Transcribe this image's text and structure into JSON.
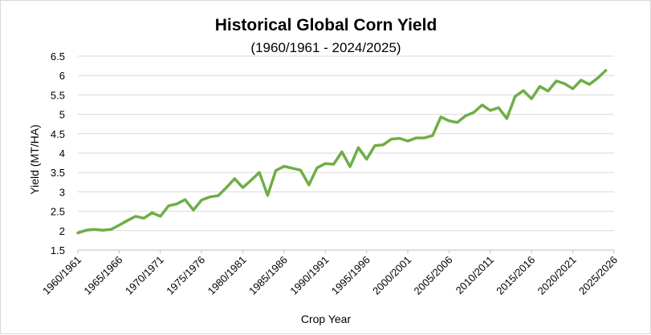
{
  "chart_data": {
    "type": "line",
    "title": "Historical Global Corn Yield",
    "subtitle": "(1960/1961 - 2024/2025)",
    "xlabel": "Crop Year",
    "ylabel": "Yield  (MT/HA)",
    "ylim": [
      1.5,
      6.5
    ],
    "yticks": [
      "1.5",
      "2",
      "2.5",
      "3",
      "3.5",
      "4",
      "4.5",
      "5",
      "5.5",
      "6",
      "6.5"
    ],
    "xticks": [
      "1960/1961",
      "1965/1966",
      "1970/1971",
      "1975/1976",
      "1980/1981",
      "1985/1986",
      "1990/1991",
      "1995/1996",
      "2000/2001",
      "2005/2006",
      "2010/2011",
      "2015/2016",
      "2020/2021",
      "2025/2026"
    ],
    "grid": true,
    "line_color": "#70ad47",
    "series": [
      {
        "x": [
          "1960/1961",
          "1961/1962",
          "1962/1963",
          "1963/1964",
          "1964/1965",
          "1965/1966",
          "1966/1967",
          "1967/1968",
          "1968/1969",
          "1969/1970",
          "1970/1971",
          "1971/1972",
          "1972/1973",
          "1973/1974",
          "1974/1975",
          "1975/1976",
          "1976/1977",
          "1977/1978",
          "1978/1979",
          "1979/1980",
          "1980/1981",
          "1981/1982",
          "1982/1983",
          "1983/1984",
          "1984/1985",
          "1985/1986",
          "1986/1987",
          "1987/1988",
          "1988/1989",
          "1989/1990",
          "1990/1991",
          "1991/1992",
          "1992/1993",
          "1993/1994",
          "1994/1995",
          "1995/1996",
          "1996/1997",
          "1997/1998",
          "1998/1999",
          "1999/2000",
          "2000/2001",
          "2001/2002",
          "2002/2003",
          "2003/2004",
          "2004/2005",
          "2005/2006",
          "2006/2007",
          "2007/2008",
          "2008/2009",
          "2009/2010",
          "2010/2011",
          "2011/2012",
          "2012/2013",
          "2013/2014",
          "2014/2015",
          "2015/2016",
          "2016/2017",
          "2017/2018",
          "2018/2019",
          "2019/2020",
          "2020/2021",
          "2021/2022",
          "2022/2023",
          "2023/2024",
          "2024/2025"
        ],
        "values": [
          1.94,
          2.01,
          2.03,
          2.01,
          2.03,
          2.14,
          2.26,
          2.37,
          2.32,
          2.46,
          2.37,
          2.64,
          2.69,
          2.8,
          2.53,
          2.79,
          2.87,
          2.9,
          3.11,
          3.34,
          3.11,
          3.3,
          3.5,
          2.91,
          3.55,
          3.66,
          3.61,
          3.56,
          3.18,
          3.62,
          3.73,
          3.71,
          4.03,
          3.65,
          4.14,
          3.84,
          4.19,
          4.21,
          4.36,
          4.38,
          4.31,
          4.39,
          4.39,
          4.45,
          4.93,
          4.83,
          4.79,
          4.96,
          5.05,
          5.24,
          5.1,
          5.17,
          4.89,
          5.46,
          5.61,
          5.4,
          5.72,
          5.6,
          5.86,
          5.79,
          5.66,
          5.88,
          5.77,
          5.93,
          6.13
        ]
      }
    ]
  }
}
